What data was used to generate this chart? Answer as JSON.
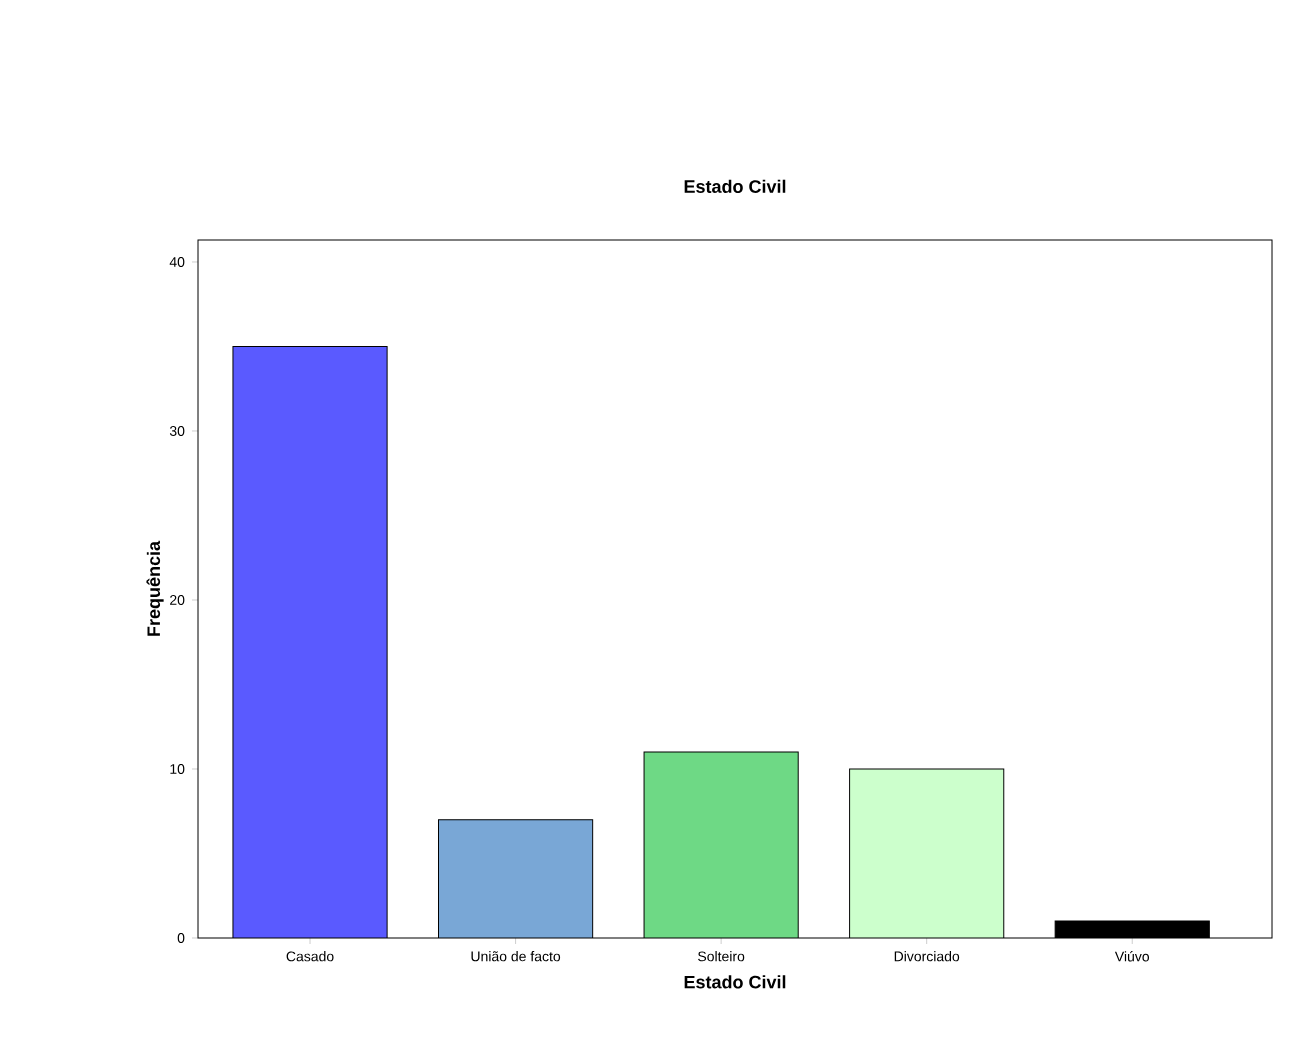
{
  "chart_data": {
    "type": "bar",
    "title": "Estado Civil",
    "xlabel": "Estado Civil",
    "ylabel": "Frequência",
    "categories": [
      "Casado",
      "União de facto",
      "Solteiro",
      "Divorciado",
      "Viúvo"
    ],
    "values": [
      35,
      7,
      11,
      10,
      1
    ],
    "colors": [
      "#5a5aff",
      "#79a7d6",
      "#6ed985",
      "#ccffcc",
      "#000000"
    ],
    "ylim": [
      0,
      41.3
    ],
    "yticks": [
      0,
      10,
      20,
      30,
      40
    ],
    "grid": false
  }
}
